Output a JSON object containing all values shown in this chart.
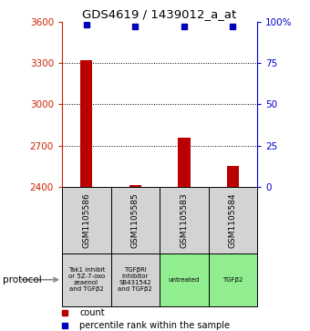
{
  "title": "GDS4619 / 1439012_a_at",
  "samples": [
    "GSM1105586",
    "GSM1105585",
    "GSM1105583",
    "GSM1105584"
  ],
  "count_values": [
    3320,
    2415,
    2760,
    2555
  ],
  "percentile_values": [
    98,
    97,
    97,
    97
  ],
  "ylim_left": [
    2400,
    3600
  ],
  "ylim_right": [
    0,
    100
  ],
  "yticks_left": [
    2400,
    2700,
    3000,
    3300,
    3600
  ],
  "yticks_right": [
    0,
    25,
    50,
    75,
    100
  ],
  "ytick_labels_right": [
    "0",
    "25",
    "50",
    "75",
    "100%"
  ],
  "bar_color": "#bb0000",
  "dot_color": "#0000bb",
  "protocol_labels": [
    "Tak1 inhibit\nor 5Z-7-oxo\nzeaenol\nand TGFβ2",
    "TGFβRI\ninhibitor\nSB431542\nand TGFβ2",
    "untreated",
    "TGFβ2"
  ],
  "protocol_colors": [
    "#d3d3d3",
    "#d3d3d3",
    "#90ee90",
    "#90ee90"
  ],
  "left_axis_color": "#cc2200",
  "right_axis_color": "#0000cc",
  "grid_dotted_values": [
    2700,
    3000,
    3300
  ],
  "legend_count_color": "#bb0000",
  "legend_percentile_color": "#0000bb",
  "bar_width": 0.25
}
